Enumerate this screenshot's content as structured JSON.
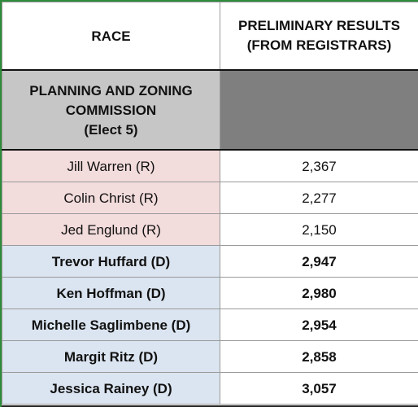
{
  "header": {
    "race_label": "RACE",
    "results_line1": "PRELIMINARY RESULTS",
    "results_line2": "(FROM REGISTRARS)"
  },
  "section": {
    "line1": "PLANNING AND ZONING",
    "line2": "COMMISSION",
    "line3": "(Elect 5)"
  },
  "candidates": [
    {
      "name": "Jill Warren (R)",
      "votes": "2,367",
      "party": "R"
    },
    {
      "name": "Colin Christ (R)",
      "votes": "2,277",
      "party": "R"
    },
    {
      "name": "Jed Englund (R)",
      "votes": "2,150",
      "party": "R"
    },
    {
      "name": "Trevor Huffard (D)",
      "votes": "2,947",
      "party": "D"
    },
    {
      "name": "Ken Hoffman (D)",
      "votes": "2,980",
      "party": "D"
    },
    {
      "name": "Michelle Saglimbene (D)",
      "votes": "2,954",
      "party": "D"
    },
    {
      "name": "Margit Ritz (D)",
      "votes": "2,858",
      "party": "D"
    },
    {
      "name": "Jessica Rainey (D)",
      "votes": "3,057",
      "party": "D"
    }
  ],
  "colors": {
    "republican_fill": "#f3dcdc",
    "democrat_fill": "#dbe5f1",
    "section_fill": "#c6c6c6",
    "section_dark_fill": "#7f7f7f"
  }
}
